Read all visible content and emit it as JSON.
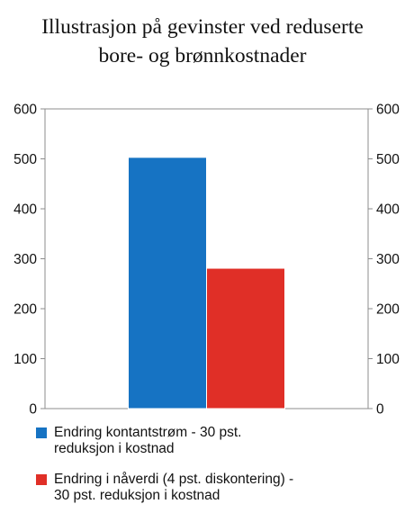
{
  "chart_data": {
    "type": "bar",
    "title_lines": [
      "Illustrasjon på gevinster ved reduserte",
      "bore- og brønnkostnader"
    ],
    "xlabel": "",
    "ylabel": "",
    "ylim": [
      0,
      600
    ],
    "yticks": [
      0,
      100,
      200,
      300,
      400,
      500,
      600
    ],
    "y_axis_right": true,
    "grid": false,
    "legend_position": "bottom",
    "series": [
      {
        "label_lines": [
          "Endring kontantstrøm - 30 pst.",
          "reduksjon i kostnad"
        ],
        "value": 503,
        "color": "#1673c3"
      },
      {
        "label_lines": [
          "Endring i nåverdi (4 pst. diskontering) -",
          "30 pst. reduksjon i kostnad"
        ],
        "value": 281,
        "color": "#e02f27"
      }
    ]
  }
}
